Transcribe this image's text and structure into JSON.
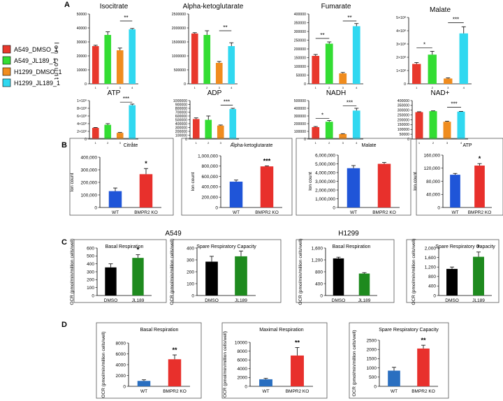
{
  "panel_labels": {
    "A": "A",
    "B": "B",
    "C": "C",
    "D": "D"
  },
  "legend": {
    "entries": [
      {
        "label": "A549_DMSO_1",
        "color": "#e8382c"
      },
      {
        "label": "A549_JL189_1",
        "color": "#33dd33"
      },
      {
        "label": "H1299_DMSO_1",
        "color": "#f08c1e"
      },
      {
        "label": "H1299_JL189_1",
        "color": "#30d8f0"
      }
    ]
  },
  "panelA_ylabel": "Ion count",
  "panelC_cell_titles": {
    "left": "A549",
    "right": "H1299"
  },
  "chart_data": [
    {
      "id": "a_isocitrate",
      "panel": "A",
      "type": "bar",
      "title": "Isocitrate",
      "categories": [
        "A549_DMSO_1",
        "A549_JL189_1",
        "H1299_DMSO_1",
        "H1299_JL189_1"
      ],
      "values": [
        27000,
        35000,
        24000,
        39000
      ],
      "errors": [
        600,
        2200,
        1600,
        600
      ],
      "ylim": [
        0,
        50000
      ],
      "yticks": [
        0,
        10000,
        20000,
        30000,
        40000,
        50000
      ],
      "ytick_labels": [
        "0",
        "10000",
        "20000",
        "30000",
        "40000",
        "50000"
      ],
      "xtick_labels": [
        "1",
        "2",
        "3",
        "4"
      ],
      "colors": [
        "#e8382c",
        "#33dd33",
        "#f08c1e",
        "#30d8f0"
      ],
      "signif": [
        {
          "from": 2,
          "to": 3,
          "label": "**",
          "y": 45000
        }
      ]
    },
    {
      "id": "a_akg",
      "panel": "A",
      "type": "bar",
      "title": "Alpha-ketoglutarate",
      "categories": [
        "A549_DMSO_1",
        "A549_JL189_1",
        "H1299_DMSO_1",
        "H1299_JL189_1"
      ],
      "values": [
        1800000,
        1750000,
        750000,
        1350000
      ],
      "errors": [
        30000,
        150000,
        50000,
        120000
      ],
      "ylim": [
        0,
        2500000
      ],
      "yticks": [
        0,
        500000,
        1000000,
        1500000,
        2000000,
        2500000
      ],
      "ytick_labels": [
        "0",
        "500000",
        "1000000",
        "1500000",
        "2000000",
        "2500000"
      ],
      "xtick_labels": [
        "1",
        "2",
        "3",
        "4"
      ],
      "colors": [
        "#e8382c",
        "#33dd33",
        "#f08c1e",
        "#30d8f0"
      ],
      "signif": [
        {
          "from": 2,
          "to": 3,
          "label": "**",
          "y": 1900000
        }
      ]
    },
    {
      "id": "a_fumarate",
      "panel": "A",
      "type": "bar",
      "title": "Fumarate",
      "categories": [
        "A549_DMSO_1",
        "A549_JL189_1",
        "H1299_DMSO_1",
        "H1299_JL189_1"
      ],
      "values": [
        160000,
        230000,
        60000,
        330000
      ],
      "errors": [
        8000,
        10000,
        5000,
        15000
      ],
      "ylim": [
        0,
        400000
      ],
      "yticks": [
        0,
        50000,
        100000,
        150000,
        200000,
        250000,
        300000,
        350000,
        400000
      ],
      "ytick_labels": [
        "0",
        "50000",
        "100000",
        "150000",
        "200000",
        "250000",
        "300000",
        "350000",
        "400000"
      ],
      "xtick_labels": [
        "1",
        "2",
        "3",
        "4"
      ],
      "colors": [
        "#e8382c",
        "#33dd33",
        "#f08c1e",
        "#30d8f0"
      ],
      "signif": [
        {
          "from": 0,
          "to": 1,
          "label": "**",
          "y": 260000
        },
        {
          "from": 2,
          "to": 3,
          "label": "**",
          "y": 360000
        }
      ]
    },
    {
      "id": "a_malate",
      "panel": "A",
      "type": "bar",
      "title": "Malate",
      "categories": [
        "A549_DMSO_1",
        "A549_JL189_1",
        "H1299_DMSO_1",
        "H1299_JL189_1"
      ],
      "values": [
        150000000,
        220000000,
        40000000,
        380000000
      ],
      "errors": [
        10000000,
        25000000,
        5000000,
        50000000
      ],
      "ylim": [
        0,
        500000000
      ],
      "yticks": [
        0,
        100000000,
        200000000,
        300000000,
        400000000,
        500000000
      ],
      "ytick_labels": [
        "0",
        "1×10⁸",
        "2×10⁸",
        "3×10⁸",
        "4×10⁸",
        "5×10⁸"
      ],
      "xtick_labels": [
        "1",
        "2",
        "3",
        "4"
      ],
      "colors": [
        "#e8382c",
        "#33dd33",
        "#f08c1e",
        "#30d8f0"
      ],
      "signif": [
        {
          "from": 0,
          "to": 1,
          "label": "*",
          "y": 270000000
        },
        {
          "from": 2,
          "to": 3,
          "label": "***",
          "y": 460000000
        }
      ]
    },
    {
      "id": "a_atp",
      "panel": "A",
      "type": "bar",
      "title": "ATP",
      "categories": [
        "A549_DMSO_1",
        "A549_JL189_1",
        "H1299_DMSO_1",
        "H1299_JL189_1"
      ],
      "values": [
        290000000,
        370000000,
        160000000,
        880000000
      ],
      "errors": [
        10000000,
        30000000,
        10000000,
        30000000
      ],
      "ylim": [
        0,
        1000000000
      ],
      "yticks": [
        0,
        200000000,
        400000000,
        600000000,
        800000000,
        1000000000
      ],
      "ytick_labels": [
        "0",
        "2×10⁸",
        "4×10⁸",
        "6×10⁸",
        "8×10⁸",
        "1×10⁹"
      ],
      "xtick_labels": [
        "1",
        "2",
        "3",
        "4"
      ],
      "colors": [
        "#e8382c",
        "#33dd33",
        "#f08c1e",
        "#30d8f0"
      ],
      "signif": [
        {
          "from": 2,
          "to": 3,
          "label": "***",
          "y": 960000000
        }
      ]
    },
    {
      "id": "a_adp",
      "panel": "A",
      "type": "bar",
      "title": "ADP",
      "categories": [
        "A549_DMSO_1",
        "A549_JL189_1",
        "H1299_DMSO_1",
        "H1299_JL189_1"
      ],
      "values": [
        520000,
        500000,
        350000,
        780000
      ],
      "errors": [
        30000,
        100000,
        15000,
        20000
      ],
      "ylim": [
        0,
        1000000
      ],
      "yticks": [
        0,
        100000,
        200000,
        300000,
        400000,
        500000,
        600000,
        700000,
        800000,
        900000,
        1000000
      ],
      "ytick_labels": [
        "0",
        "100000",
        "200000",
        "300000",
        "400000",
        "500000",
        "600000",
        "700000",
        "800000",
        "900000",
        "1000000"
      ],
      "xtick_labels": [
        "1",
        "2",
        "3",
        "4"
      ],
      "colors": [
        "#e8382c",
        "#33dd33",
        "#f08c1e",
        "#30d8f0"
      ],
      "signif": [
        {
          "from": 2,
          "to": 3,
          "label": "***",
          "y": 880000
        }
      ]
    },
    {
      "id": "a_nadh",
      "panel": "A",
      "type": "bar",
      "title": "NADH",
      "categories": [
        "A549_DMSO_1",
        "A549_JL189_1",
        "H1299_DMSO_1",
        "H1299_JL189_1"
      ],
      "values": [
        155000,
        225000,
        65000,
        370000
      ],
      "errors": [
        8000,
        15000,
        5000,
        30000
      ],
      "ylim": [
        0,
        500000
      ],
      "yticks": [
        0,
        100000,
        200000,
        300000,
        400000,
        500000
      ],
      "ytick_labels": [
        "0",
        "100000",
        "200000",
        "300000",
        "400000",
        "500000"
      ],
      "xtick_labels": [
        "1",
        "2",
        "3",
        "4"
      ],
      "colors": [
        "#e8382c",
        "#33dd33",
        "#f08c1e",
        "#30d8f0"
      ],
      "signif": [
        {
          "from": 0,
          "to": 1,
          "label": "*",
          "y": 270000
        },
        {
          "from": 2,
          "to": 3,
          "label": "***",
          "y": 430000
        }
      ]
    },
    {
      "id": "a_nad",
      "panel": "A",
      "type": "bar",
      "title": "NAD+",
      "categories": [
        "A549_DMSO_1",
        "A549_JL189_1",
        "H1299_DMSO_1",
        "H1299_JL189_1"
      ],
      "values": [
        280000,
        290000,
        180000,
        285000
      ],
      "errors": [
        4000,
        3000,
        6000,
        3000
      ],
      "ylim": [
        0,
        400000
      ],
      "yticks": [
        0,
        50000,
        100000,
        150000,
        200000,
        250000,
        300000,
        350000,
        400000
      ],
      "ytick_labels": [
        "0",
        "50000",
        "100000",
        "150000",
        "200000",
        "250000",
        "300000",
        "350000",
        "400000"
      ],
      "xtick_labels": [
        "1",
        "2",
        "3",
        "4"
      ],
      "colors": [
        "#e8382c",
        "#33dd33",
        "#f08c1e",
        "#30d8f0"
      ],
      "signif": [
        {
          "from": 2,
          "to": 3,
          "label": "***",
          "y": 330000
        }
      ]
    },
    {
      "id": "b_citrate",
      "panel": "B",
      "type": "bar",
      "title": "Citrate",
      "ylabel": "Ion count",
      "categories": [
        "WT",
        "BMPR2 KO"
      ],
      "values": [
        130000,
        265000
      ],
      "errors": [
        25000,
        45000
      ],
      "ylim": [
        0,
        400000
      ],
      "yticks": [
        0,
        100000,
        200000,
        300000,
        400000
      ],
      "ytick_labels": [
        "0",
        "100,000",
        "200,000",
        "300,000",
        "400,000"
      ],
      "xtick_labels": [
        "WT",
        "BMPR2 KO"
      ],
      "colors": [
        "#1f55d8",
        "#e8302c"
      ],
      "stars": [
        "",
        "*"
      ]
    },
    {
      "id": "b_akg",
      "panel": "B",
      "type": "bar",
      "title": "Alpha-ketoglutarate",
      "ylabel": "Ion count",
      "categories": [
        "WT",
        "BMPR2 KO"
      ],
      "values": [
        500000,
        795000
      ],
      "errors": [
        30000,
        10000
      ],
      "ylim": [
        0,
        1000000
      ],
      "yticks": [
        0,
        200000,
        400000,
        600000,
        800000,
        1000000
      ],
      "ytick_labels": [
        "0",
        "200,000",
        "400,000",
        "600,000",
        "800,000",
        "1,000,000"
      ],
      "xtick_labels": [
        "WT",
        "BMPR2 KO"
      ],
      "colors": [
        "#1f55d8",
        "#e8302c"
      ],
      "stars": [
        "",
        "***"
      ]
    },
    {
      "id": "b_malate",
      "panel": "B",
      "type": "bar",
      "title": "Malate",
      "ylabel": "Ion count",
      "categories": [
        "WT",
        "BMPR2 KO"
      ],
      "values": [
        4500000,
        5000000
      ],
      "errors": [
        300000,
        150000
      ],
      "ylim": [
        0,
        6000000
      ],
      "yticks": [
        0,
        1000000,
        2000000,
        3000000,
        4000000,
        5000000,
        6000000
      ],
      "ytick_labels": [
        "0",
        "1,000,000",
        "2,000,000",
        "3,000,000",
        "4,000,000",
        "5,000,000",
        "6,000,000"
      ],
      "xtick_labels": [
        "WT",
        "BMPR2 KO"
      ],
      "colors": [
        "#1f55d8",
        "#e8302c"
      ],
      "stars": [
        "",
        ""
      ]
    },
    {
      "id": "b_atp",
      "panel": "B",
      "type": "bar",
      "title": "ATP",
      "ylabel": "Ion count",
      "categories": [
        "WT",
        "BMPR2 KO"
      ],
      "values": [
        100000,
        128000
      ],
      "errors": [
        4000,
        6000
      ],
      "ylim": [
        0,
        160000
      ],
      "yticks": [
        0,
        40000,
        80000,
        120000,
        160000
      ],
      "ytick_labels": [
        "0",
        "40,000",
        "80,000",
        "120,000",
        "160,000"
      ],
      "xtick_labels": [
        "WT",
        "BMPR2 KO"
      ],
      "colors": [
        "#1f55d8",
        "#e8302c"
      ],
      "stars": [
        "",
        "*"
      ]
    },
    {
      "id": "c_a549_basal",
      "panel": "C",
      "type": "bar",
      "title": "Basal Respiration",
      "ylabel": "OCR (pmol/min/million cells/well)",
      "categories": [
        "DMSO",
        "JL189"
      ],
      "values": [
        355,
        475
      ],
      "errors": [
        45,
        40
      ],
      "ylim": [
        0,
        600
      ],
      "yticks": [
        0,
        100,
        200,
        300,
        400,
        500,
        600
      ],
      "ytick_labels": [
        "0",
        "100",
        "200",
        "300",
        "400",
        "500",
        "600"
      ],
      "xtick_labels": [
        "DMSO",
        "JL189"
      ],
      "colors": [
        "#000000",
        "#1e8a1e"
      ],
      "stars": [
        "",
        "*"
      ]
    },
    {
      "id": "c_a549_spare",
      "panel": "C",
      "type": "bar",
      "title": "Spare Respiratory Capacity",
      "ylabel": "OCR (pmol/min/million cells/well)",
      "categories": [
        "DMSO",
        "JL189"
      ],
      "values": [
        285,
        330
      ],
      "errors": [
        45,
        45
      ],
      "ylim": [
        0,
        400
      ],
      "yticks": [
        0,
        100,
        200,
        300,
        400
      ],
      "ytick_labels": [
        "0",
        "100",
        "200",
        "300",
        "400"
      ],
      "xtick_labels": [
        "DMSO",
        "JL189"
      ],
      "colors": [
        "#000000",
        "#1e8a1e"
      ],
      "stars": [
        "",
        ""
      ]
    },
    {
      "id": "c_h1299_basal",
      "panel": "C",
      "type": "bar",
      "title": "Basal Respiration",
      "ylabel": "OCR (pmol/min/million cells/well)",
      "categories": [
        "DMSO",
        "JL189"
      ],
      "values": [
        1250,
        740
      ],
      "errors": [
        40,
        30
      ],
      "ylim": [
        0,
        1600
      ],
      "yticks": [
        0,
        400,
        800,
        1200,
        1600
      ],
      "ytick_labels": [
        "0",
        "400",
        "800",
        "1,200",
        "1,600"
      ],
      "xtick_labels": [
        "DMSO",
        "JL189"
      ],
      "colors": [
        "#000000",
        "#1e8a1e"
      ],
      "stars": [
        "",
        ""
      ]
    },
    {
      "id": "c_h1299_spare",
      "panel": "C",
      "type": "bar",
      "title": "Spare Respiratory Capacity",
      "ylabel": "OCR (pmol/min/million cells/well)",
      "categories": [
        "DMSO",
        "JL189"
      ],
      "values": [
        1120,
        1630
      ],
      "errors": [
        80,
        200
      ],
      "ylim": [
        0,
        2000
      ],
      "yticks": [
        0,
        400,
        800,
        1200,
        1600,
        2000
      ],
      "ytick_labels": [
        "0",
        "400",
        "800",
        "1,200",
        "1,600",
        "2,000"
      ],
      "xtick_labels": [
        "DMSO",
        "JL189"
      ],
      "colors": [
        "#000000",
        "#1e8a1e"
      ],
      "stars": [
        "",
        "*"
      ]
    },
    {
      "id": "d_basal",
      "panel": "D",
      "type": "bar",
      "title": "Basal Respiration",
      "ylabel": "OCR (pmol/min/million cells/well)",
      "categories": [
        "WT",
        "BMPR2 KO"
      ],
      "values": [
        1000,
        5000
      ],
      "errors": [
        200,
        800
      ],
      "ylim": [
        0,
        8000
      ],
      "yticks": [
        0,
        2000,
        4000,
        6000,
        8000
      ],
      "ytick_labels": [
        "0",
        "2000",
        "4000",
        "6000",
        "8000"
      ],
      "xtick_labels": [
        "WT",
        "BMPR2 KO"
      ],
      "colors": [
        "#2a6fc0",
        "#e8302c"
      ],
      "stars": [
        "",
        "**"
      ]
    },
    {
      "id": "d_maximal",
      "panel": "D",
      "type": "bar",
      "title": "Maximal Respiration",
      "ylabel": "OCR (pmol/min/million cells/well)",
      "categories": [
        "WT",
        "BMPR2 KO"
      ],
      "values": [
        1600,
        7000
      ],
      "errors": [
        200,
        1800
      ],
      "ylim": [
        0,
        10000
      ],
      "yticks": [
        0,
        2000,
        4000,
        6000,
        8000,
        10000
      ],
      "ytick_labels": [
        "0",
        "2000",
        "4000",
        "6000",
        "8000",
        "10000"
      ],
      "xtick_labels": [
        "WT",
        "BMPR2 KO"
      ],
      "colors": [
        "#2a6fc0",
        "#e8302c"
      ],
      "stars": [
        "",
        "**"
      ]
    },
    {
      "id": "d_spare",
      "panel": "D",
      "type": "bar",
      "title": "Spare Respiratory Capacity",
      "ylabel": "OCR (pmol/min/million cells/well)",
      "categories": [
        "WT",
        "BMPR2 KO"
      ],
      "values": [
        850,
        2050
      ],
      "errors": [
        180,
        180
      ],
      "ylim": [
        0,
        2500
      ],
      "yticks": [
        0,
        500,
        1000,
        1500,
        2000,
        2500
      ],
      "ytick_labels": [
        "0",
        "500",
        "1000",
        "1500",
        "2000",
        "2500"
      ],
      "xtick_labels": [
        "WT",
        "BMPR2 KO"
      ],
      "colors": [
        "#2a6fc0",
        "#e8302c"
      ],
      "stars": [
        "",
        "**"
      ]
    }
  ]
}
